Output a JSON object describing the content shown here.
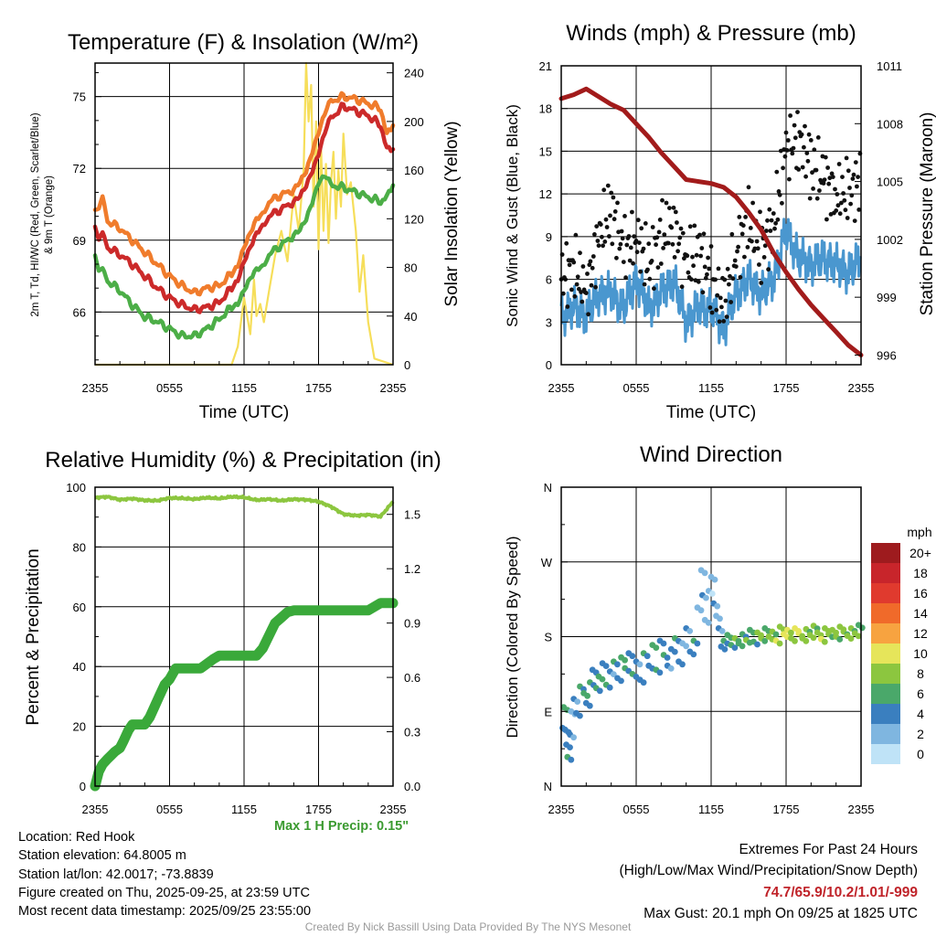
{
  "colors": {
    "red": "#cc2a2a",
    "orange": "#f07c2c",
    "green": "#4cae47",
    "yellow": "#f6de5a",
    "blue": "#4a97cf",
    "black": "#111111",
    "maroon": "#a21b1b",
    "rh": "#8cc63f",
    "precip": "#3aa93a",
    "grid": "#000000"
  },
  "time_ticks": [
    "2355",
    "0555",
    "1155",
    "1755",
    "2355"
  ],
  "temp_panel": {
    "title": "Temperature (F) & Insolation (W/m²)",
    "ylabel_line1": "2m T, Td, HI/WC (Red, Green, Scarlet/Blue)",
    "ylabel_line2": "& 9m T (Orange)",
    "y2label": "Solar Insolation (Yellow)",
    "xlabel": "Time (UTC)"
  },
  "wind_panel": {
    "title": "Winds (mph) & Pressure (mb)",
    "ylabel": "Sonic Wind & Gust (Blue, Black)",
    "y2label": "Station Pressure (Maroon)",
    "xlabel": "Time (UTC)"
  },
  "rh_panel": {
    "title": "Relative Humidity (%) & Precipitation (in)",
    "ylabel": "Percent & Precipitation",
    "max_precip": "Max 1 H Precip: 0.15\""
  },
  "dir_panel": {
    "title": "Wind Direction",
    "ylabel": "Direction (Colored By Speed)",
    "legend_title": "mph",
    "legend_labels": [
      "20+",
      "18",
      "16",
      "14",
      "12",
      "10",
      "8",
      "6",
      "4",
      "2",
      "0"
    ],
    "legend_colors": [
      "#9e1b1e",
      "#c8252b",
      "#e03a2e",
      "#f06a2a",
      "#f7a340",
      "#e6e55a",
      "#8cc63f",
      "#4aa86a",
      "#3a7fbf",
      "#7fb6e0",
      "#bfe3f7"
    ]
  },
  "chart_data": [
    {
      "type": "line",
      "title": "Temperature (F) & Insolation (W/m²)",
      "xlabel": "Time (UTC)",
      "ylabel": "2m T, Td, HI/WC (Red, Green, Scarlet/Blue) & 9m T (Orange)",
      "y2label": "Solar Insolation (Yellow)",
      "x_unit": "hours since 2355 UTC",
      "xlim": [
        0,
        24
      ],
      "ylim": [
        63.8,
        76.4
      ],
      "yticks": [
        66,
        69,
        72,
        75
      ],
      "y2lim": [
        0,
        248
      ],
      "y2ticks": [
        0,
        40,
        80,
        120,
        160,
        200,
        240
      ],
      "x": [
        0,
        0.3,
        0.6,
        1,
        2,
        3,
        4,
        5,
        6,
        7,
        8,
        9,
        10,
        11,
        11.5,
        12,
        12.5,
        13,
        13.5,
        14,
        15,
        16,
        16.5,
        17,
        17.5,
        18,
        18.5,
        19,
        20,
        21,
        22,
        23,
        23.5,
        24
      ],
      "series": [
        {
          "name": "2m T (Red)",
          "values": [
            69.5,
            69.2,
            69.3,
            68.7,
            68.4,
            68.0,
            67.5,
            67.0,
            66.6,
            66.3,
            66.1,
            66.2,
            66.4,
            67.0,
            67.4,
            68.2,
            68.8,
            69.4,
            69.7,
            70.0,
            70.3,
            70.6,
            70.8,
            71.2,
            71.8,
            72.5,
            73.4,
            74.1,
            74.6,
            74.4,
            74.2,
            73.8,
            73.0,
            72.8
          ]
        },
        {
          "name": "2m Td (Green)",
          "values": [
            68.3,
            67.9,
            67.8,
            67.3,
            66.9,
            66.3,
            65.8,
            65.6,
            65.3,
            65.0,
            65.0,
            65.3,
            65.7,
            66.2,
            66.4,
            67.0,
            67.5,
            67.9,
            68.0,
            68.4,
            68.8,
            69.2,
            69.4,
            69.8,
            70.5,
            71.3,
            71.6,
            71.3,
            71.2,
            71.0,
            70.8,
            70.6,
            71.0,
            71.3
          ]
        },
        {
          "name": "9m T (Orange)",
          "values": [
            70.2,
            70.5,
            70.8,
            69.8,
            69.5,
            69.0,
            68.5,
            68.0,
            67.5,
            67.1,
            66.8,
            67.0,
            67.1,
            67.6,
            68.0,
            68.8,
            69.4,
            70.0,
            70.2,
            70.6,
            70.9,
            71.1,
            71.4,
            71.8,
            72.6,
            73.4,
            74.2,
            74.8,
            75.0,
            74.9,
            74.7,
            74.5,
            73.6,
            73.8
          ]
        },
        {
          "name": "Solar Insolation (Yellow)",
          "axis": "y2",
          "x": [
            0,
            11,
            11.5,
            12,
            12.5,
            12.8,
            13,
            13.3,
            13.6,
            14,
            14.5,
            15,
            15.5,
            16,
            16.4,
            16.8,
            17,
            17.2,
            17.4,
            17.6,
            17.8,
            18,
            18.2,
            18.4,
            18.6,
            18.8,
            19,
            19.2,
            19.4,
            19.6,
            19.8,
            20,
            20.3,
            20.6,
            21,
            21.3,
            21.6,
            22,
            22.5,
            24
          ],
          "values": [
            0,
            0,
            15,
            55,
            25,
            70,
            40,
            50,
            35,
            60,
            90,
            110,
            85,
            140,
            110,
            160,
            248,
            200,
            230,
            130,
            200,
            95,
            180,
            110,
            165,
            100,
            150,
            175,
            120,
            160,
            130,
            190,
            140,
            150,
            110,
            60,
            90,
            35,
            5,
            0
          ]
        }
      ]
    },
    {
      "type": "line",
      "title": "Winds (mph) & Pressure (mb)",
      "xlabel": "Time (UTC)",
      "ylabel": "Sonic Wind & Gust (Blue, Black)",
      "y2label": "Station Pressure (Maroon)",
      "x_unit": "hours since 2355 UTC",
      "xlim": [
        0,
        24
      ],
      "ylim": [
        0,
        21
      ],
      "yticks": [
        0,
        3,
        6,
        9,
        12,
        15,
        18,
        21
      ],
      "y2lim": [
        995.5,
        1011
      ],
      "y2ticks": [
        996,
        999,
        1002,
        1005,
        1008,
        1011
      ],
      "x": [
        0,
        1,
        2,
        3,
        4,
        5,
        6,
        7,
        8,
        9,
        10,
        11,
        12,
        13,
        14,
        15,
        16,
        17,
        18,
        19,
        20,
        21,
        22,
        23,
        24
      ],
      "series": [
        {
          "name": "Sonic Wind (Blue)",
          "values": [
            3.5,
            4,
            3.5,
            5,
            5,
            4,
            6,
            4,
            5,
            6,
            3,
            4,
            4,
            2.5,
            5,
            6,
            5,
            6,
            9.5,
            7.5,
            7,
            7.5,
            7,
            6.5,
            7.5
          ]
        },
        {
          "name": "Gust (Black)",
          "values": [
            6,
            7,
            5,
            9,
            11,
            8,
            9,
            7,
            9,
            10,
            7,
            8,
            6,
            4,
            8,
            10,
            8,
            10,
            15,
            16,
            14,
            13,
            12,
            12,
            13
          ]
        },
        {
          "name": "Station Pressure (Maroon)",
          "axis": "y2",
          "values": [
            1009.3,
            1009.5,
            1009.8,
            1009.4,
            1009.0,
            1008.7,
            1008.0,
            1007.3,
            1006.5,
            1005.8,
            1005.1,
            1005.0,
            1004.9,
            1004.7,
            1004.2,
            1003.4,
            1002.5,
            1001.3,
            1000.3,
            999.4,
            998.6,
            997.9,
            997.2,
            996.5,
            996.0
          ]
        }
      ]
    },
    {
      "type": "line",
      "title": "Relative Humidity (%) & Precipitation (in)",
      "ylabel": "Percent & Precipitation",
      "x_unit": "hours since 2355 UTC",
      "xlim": [
        0,
        24
      ],
      "ylim": [
        0,
        100
      ],
      "yticks": [
        0,
        20,
        40,
        60,
        80,
        100
      ],
      "y2lim": [
        0,
        1.65
      ],
      "y2ticks": [
        0.0,
        0.3,
        0.6,
        0.9,
        1.2,
        1.5
      ],
      "series": [
        {
          "name": "Relative Humidity",
          "x": [
            0,
            1,
            2,
            3,
            4,
            5,
            6,
            7,
            8,
            9,
            10,
            11,
            12,
            13,
            14,
            15,
            16,
            17,
            18,
            19,
            20,
            21,
            22,
            23,
            24
          ],
          "values": [
            96.5,
            96.8,
            95.8,
            96.2,
            95.6,
            95.5,
            96.4,
            96.3,
            96.0,
            96.5,
            96.2,
            96.8,
            96.6,
            95.7,
            96.0,
            95.5,
            96.0,
            95.8,
            95.2,
            93.5,
            91.0,
            90.5,
            90.8,
            90.2,
            95.2
          ]
        },
        {
          "name": "Precipitation",
          "axis": "y2",
          "x": [
            0,
            0.3,
            0.6,
            1,
            1.3,
            1.6,
            2,
            2.3,
            2.7,
            3,
            3.5,
            4,
            4.4,
            4.8,
            5.2,
            5.6,
            6.0,
            6.5,
            7.5,
            7.8,
            8.5,
            9.5,
            10,
            11,
            13,
            13.5,
            14,
            14.5,
            15,
            15.5,
            16,
            22,
            22.5,
            23,
            24
          ],
          "values": [
            0.0,
            0.08,
            0.12,
            0.15,
            0.17,
            0.19,
            0.21,
            0.25,
            0.31,
            0.34,
            0.34,
            0.34,
            0.38,
            0.44,
            0.5,
            0.56,
            0.59,
            0.65,
            0.65,
            0.65,
            0.65,
            0.7,
            0.72,
            0.72,
            0.72,
            0.76,
            0.83,
            0.9,
            0.93,
            0.96,
            0.97,
            0.97,
            0.99,
            1.01,
            1.01
          ]
        }
      ]
    },
    {
      "type": "scatter",
      "title": "Wind Direction",
      "ylabel": "Direction (Colored By Speed)",
      "x_unit": "hours since 2355 UTC",
      "xlim": [
        0,
        24
      ],
      "y_unit": "degrees (N=0, E=90, S=180, W=270, N=360)",
      "ylim": [
        360,
        0
      ],
      "ytick_labels": [
        "N",
        "W",
        "S",
        "E",
        "N"
      ],
      "legend_unit": "mph",
      "points": [
        [
          0.1,
          70,
          3
        ],
        [
          0.3,
          68,
          4
        ],
        [
          0.2,
          95,
          6
        ],
        [
          0.4,
          50,
          4
        ],
        [
          0.5,
          35,
          5
        ],
        [
          0.7,
          62,
          3
        ],
        [
          0.8,
          90,
          2
        ],
        [
          1.0,
          105,
          3
        ],
        [
          1.2,
          88,
          4
        ],
        [
          1.5,
          120,
          5
        ],
        [
          1.8,
          112,
          6
        ],
        [
          2.0,
          100,
          4
        ],
        [
          2.3,
          125,
          5
        ],
        [
          2.5,
          140,
          4
        ],
        [
          2.8,
          118,
          5
        ],
        [
          3.0,
          132,
          6
        ],
        [
          3.3,
          148,
          4
        ],
        [
          3.6,
          122,
          5
        ],
        [
          3.9,
          138,
          3
        ],
        [
          4.2,
          150,
          5
        ],
        [
          4.5,
          130,
          4
        ],
        [
          4.8,
          155,
          6
        ],
        [
          5.1,
          142,
          5
        ],
        [
          5.4,
          160,
          4
        ],
        [
          5.7,
          135,
          5
        ],
        [
          6.0,
          150,
          3
        ],
        [
          6.3,
          128,
          4
        ],
        [
          6.6,
          160,
          5
        ],
        [
          7.0,
          145,
          4
        ],
        [
          7.3,
          170,
          6
        ],
        [
          7.6,
          140,
          5
        ],
        [
          7.9,
          175,
          4
        ],
        [
          8.2,
          158,
          5
        ],
        [
          8.5,
          145,
          3
        ],
        [
          8.8,
          165,
          4
        ],
        [
          9.1,
          178,
          5
        ],
        [
          9.4,
          150,
          4
        ],
        [
          9.7,
          172,
          2
        ],
        [
          10.0,
          190,
          3
        ],
        [
          10.3,
          162,
          4
        ],
        [
          10.6,
          175,
          5
        ],
        [
          10.9,
          215,
          2
        ],
        [
          11.2,
          260,
          2
        ],
        [
          11.3,
          230,
          3
        ],
        [
          11.5,
          200,
          2
        ],
        [
          11.8,
          235,
          1
        ],
        [
          12.0,
          252,
          2
        ],
        [
          12.2,
          220,
          3
        ],
        [
          12.4,
          205,
          2
        ],
        [
          12.6,
          190,
          3
        ],
        [
          12.8,
          168,
          4
        ],
        [
          13.0,
          175,
          5
        ],
        [
          13.3,
          182,
          6
        ],
        [
          13.6,
          170,
          5
        ],
        [
          13.9,
          178,
          7
        ],
        [
          14.2,
          172,
          6
        ],
        [
          14.5,
          183,
          5
        ],
        [
          14.8,
          176,
          7
        ],
        [
          15.1,
          188,
          6
        ],
        [
          15.4,
          174,
          5
        ],
        [
          15.7,
          185,
          8
        ],
        [
          16.0,
          178,
          7
        ],
        [
          16.3,
          190,
          6
        ],
        [
          16.6,
          180,
          8
        ],
        [
          16.9,
          186,
          7
        ],
        [
          17.2,
          175,
          9
        ],
        [
          17.5,
          192,
          8
        ],
        [
          17.8,
          183,
          10
        ],
        [
          18.1,
          188,
          9
        ],
        [
          18.4,
          178,
          8
        ],
        [
          18.7,
          190,
          10
        ],
        [
          19.0,
          184,
          9
        ],
        [
          19.3,
          178,
          8
        ],
        [
          19.6,
          189,
          7
        ],
        [
          19.9,
          182,
          8
        ],
        [
          20.2,
          193,
          7
        ],
        [
          20.5,
          185,
          8
        ],
        [
          20.8,
          177,
          9
        ],
        [
          21.1,
          190,
          8
        ],
        [
          21.4,
          183,
          7
        ],
        [
          21.7,
          188,
          8
        ],
        [
          22.0,
          180,
          7
        ],
        [
          22.3,
          192,
          8
        ],
        [
          22.6,
          186,
          7
        ],
        [
          22.9,
          181,
          8
        ],
        [
          23.2,
          190,
          7
        ],
        [
          23.5,
          184,
          8
        ],
        [
          23.8,
          194,
          6
        ]
      ]
    }
  ],
  "info": {
    "location": "Location: Red Hook",
    "elevation": "Station elevation: 64.8005 m",
    "latlon": "Station lat/lon: 42.0017; -73.8839",
    "created": "Figure created on Thu, 2025-09-25, at 23:59 UTC",
    "recent": "Most recent data timestamp: 2025/09/25 23:55:00"
  },
  "extremes": {
    "title": "Extremes For Past 24 Hours",
    "subtitle": "(High/Low/Max Wind/Precipitation/Snow Depth)",
    "values": "74.7/65.9/10.2/1.01/-999",
    "max_gust": "Max Gust: 20.1 mph On 09/25 at 1825 UTC"
  },
  "credit": "Created By Nick Bassill Using Data Provided By The NYS Mesonet"
}
